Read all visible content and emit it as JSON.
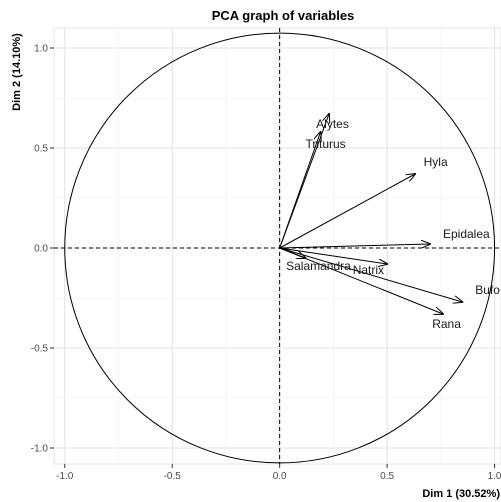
{
  "chart_data": {
    "type": "scatter",
    "title": "PCA graph of variables",
    "xlabel": "Dim 1 (30.52%)",
    "ylabel": "Dim 2 (14.10%)",
    "xlim": [
      -1.05,
      1.03
    ],
    "ylim": [
      -1.08,
      1.1
    ],
    "xticks": [
      -1.0,
      -0.5,
      0.0,
      0.5,
      1.0
    ],
    "xtick_labels": [
      "-1.0",
      "-0.5",
      "0.0",
      "0.5",
      "1.0"
    ],
    "yticks": [
      -1.0,
      -0.5,
      0.0,
      0.5,
      1.0
    ],
    "ytick_labels": [
      "-1.0",
      "-0.5",
      "0.0",
      "0.5",
      "1.0"
    ],
    "grid": true,
    "correlation_circle": true,
    "arrows": [
      {
        "name": "Alytes",
        "x": 0.23,
        "y": 0.67,
        "label_x": 0.17,
        "label_y": 0.6
      },
      {
        "name": "Triturus",
        "x": 0.19,
        "y": 0.58,
        "label_x": 0.12,
        "label_y": 0.5
      },
      {
        "name": "Hyla",
        "x": 0.63,
        "y": 0.37,
        "label_x": 0.67,
        "label_y": 0.41
      },
      {
        "name": "Epidalea",
        "x": 0.7,
        "y": 0.02,
        "label_x": 0.76,
        "label_y": 0.05
      },
      {
        "name": "Salamandra",
        "x": 0.12,
        "y": -0.05,
        "label_x": 0.03,
        "label_y": -0.11
      },
      {
        "name": "Natrix",
        "x": 0.5,
        "y": -0.08,
        "label_x": 0.34,
        "label_y": -0.13
      },
      {
        "name": "Bufo",
        "x": 0.85,
        "y": -0.27,
        "label_x": 0.91,
        "label_y": -0.23
      },
      {
        "name": "Rana",
        "x": 0.76,
        "y": -0.33,
        "label_x": 0.71,
        "label_y": -0.4
      }
    ]
  }
}
